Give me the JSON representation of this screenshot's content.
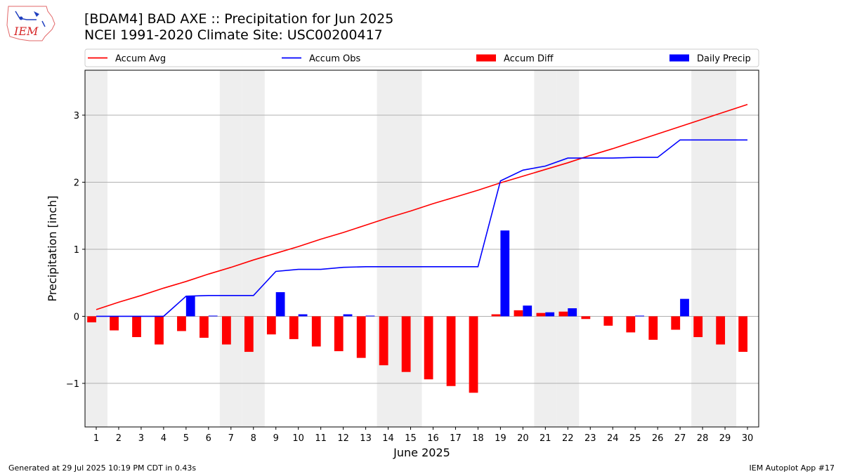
{
  "header": {
    "title_line1": "[BDAM4] BAD AXE :: Precipitation for Jun 2025",
    "title_line2": "NCEI 1991-2020 Climate Site: USC00200417"
  },
  "logo": {
    "text": "IEM",
    "color": "#d62728"
  },
  "footer": {
    "left": "Generated at 29 Jul 2025 10:19 PM CDT in 0.43s",
    "right": "IEM Autoplot App #17"
  },
  "chart_data": {
    "type": "bar",
    "xlabel": "June 2025",
    "ylabel": "Precipitation [inch]",
    "ylim": [
      -1.65,
      3.67
    ],
    "yticks": [
      -1,
      0,
      1,
      2,
      3
    ],
    "ytick_labels": [
      "−1",
      "0",
      "1",
      "2",
      "3"
    ],
    "grid": "horizontal",
    "legend_position": "top",
    "days": [
      1,
      2,
      3,
      4,
      5,
      6,
      7,
      8,
      9,
      10,
      11,
      12,
      13,
      14,
      15,
      16,
      17,
      18,
      19,
      20,
      21,
      22,
      23,
      24,
      25,
      26,
      27,
      28,
      29,
      30
    ],
    "weekends": [
      1,
      7,
      8,
      14,
      15,
      21,
      22,
      28,
      29
    ],
    "series": [
      {
        "name": "Accum Avg",
        "kind": "line",
        "color": "#ff0000",
        "values": [
          0.1,
          0.21,
          0.31,
          0.42,
          0.52,
          0.63,
          0.73,
          0.84,
          0.94,
          1.04,
          1.15,
          1.25,
          1.36,
          1.47,
          1.57,
          1.68,
          1.78,
          1.88,
          1.99,
          2.09,
          2.19,
          2.29,
          2.4,
          2.5,
          2.61,
          2.72,
          2.83,
          2.94,
          3.05,
          3.16
        ]
      },
      {
        "name": "Accum Obs",
        "kind": "line",
        "color": "#0000ff",
        "values": [
          0.0,
          0.0,
          0.0,
          0.0,
          0.3,
          0.31,
          0.31,
          0.31,
          0.67,
          0.7,
          0.7,
          0.73,
          0.74,
          0.74,
          0.74,
          0.74,
          0.74,
          0.74,
          2.02,
          2.18,
          2.24,
          2.36,
          2.36,
          2.36,
          2.37,
          2.37,
          2.63,
          2.63,
          2.63,
          2.63
        ]
      },
      {
        "name": "Accum Diff",
        "kind": "bar",
        "color": "#ff0000",
        "values": [
          -0.09,
          -0.21,
          -0.31,
          -0.42,
          -0.22,
          -0.32,
          -0.42,
          -0.53,
          -0.27,
          -0.34,
          -0.45,
          -0.52,
          -0.62,
          -0.73,
          -0.83,
          -0.94,
          -1.04,
          -1.14,
          0.03,
          0.09,
          0.05,
          0.07,
          -0.04,
          -0.14,
          -0.24,
          -0.35,
          -0.2,
          -0.31,
          -0.42,
          -0.53
        ]
      },
      {
        "name": "Daily Precip",
        "kind": "bar",
        "color": "#0000ff",
        "values": [
          0,
          0,
          0,
          0,
          0.3,
          0.01,
          0,
          0,
          0.36,
          0.03,
          0,
          0.03,
          0.01,
          0,
          0,
          0,
          0,
          0,
          1.28,
          0.16,
          0.06,
          0.12,
          0,
          0,
          0.01,
          0,
          0.26,
          0,
          0,
          0
        ]
      }
    ]
  }
}
